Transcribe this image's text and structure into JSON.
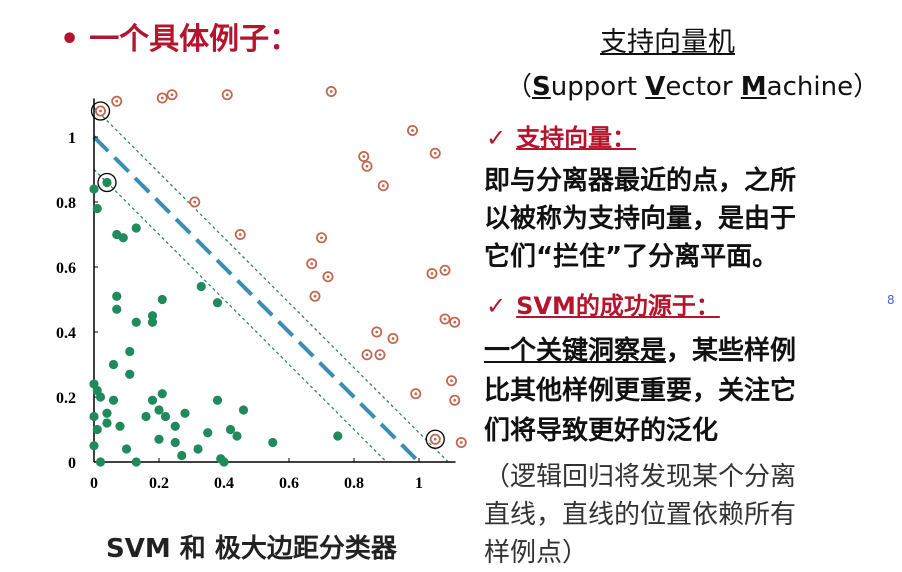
{
  "title": {
    "bullet": "•",
    "text": "一个具体例子："
  },
  "right_panel": {
    "heading": "支持向量机",
    "subheading": {
      "open": "（",
      "parts": [
        {
          "initial": "S",
          "rest": "upport "
        },
        {
          "initial": "V",
          "rest": "ector "
        },
        {
          "initial": "M",
          "rest": "achine"
        }
      ],
      "close": "）"
    },
    "check_mark": "✓",
    "section1": {
      "title": "支持向量：",
      "lines": [
        "即与分离器最近的点，之所",
        "以被称为支持向量，是由于",
        "它们“拦住”了分离平面。"
      ]
    },
    "section2": {
      "title": "SVM的成功源于：",
      "lines": [
        {
          "emph": "一个关键洞察是",
          "rest": "，某些样例"
        },
        {
          "emph": "",
          "rest": "比其他样例更重要，关注它"
        },
        {
          "emph": "",
          "rest": "们将导致更好的泛化"
        }
      ]
    },
    "note_lines": [
      "（逻辑回归将发现某个分离",
      "直线，直线的位置依赖所有",
      "样例点）"
    ],
    "margin_marker": "8"
  },
  "caption": "SVM 和 极大边距分类器",
  "colors": {
    "accent": "#b3152d",
    "positive": "#1f8a5b",
    "negative": "#c0694f",
    "separator": "#3b8db5",
    "margin": "#2f8a5a"
  },
  "chart_data": {
    "type": "scatter",
    "title": "",
    "xlabel": "",
    "ylabel": "",
    "xlim": [
      0,
      1.1
    ],
    "ylim": [
      0,
      1.1
    ],
    "x_ticks": [
      "0",
      "0.2",
      "0.4",
      "0.6",
      "0.8",
      "1"
    ],
    "y_ticks": [
      "0",
      "0.2",
      "0.4",
      "0.6",
      "0.8",
      "1"
    ],
    "separator": {
      "style": "dashed",
      "points": [
        [
          0,
          1
        ],
        [
          1,
          0
        ]
      ]
    },
    "margins": [
      {
        "style": "dotted",
        "points": [
          [
            0,
            1.09
          ],
          [
            1.09,
            0
          ]
        ]
      },
      {
        "style": "dotted",
        "points": [
          [
            0,
            0.9
          ],
          [
            0.9,
            0
          ]
        ]
      }
    ],
    "series": [
      {
        "name": "positive",
        "marker": "filled-circle",
        "points": [
          [
            0.0,
            0.84
          ],
          [
            0.01,
            0.78
          ],
          [
            0.04,
            0.86
          ],
          [
            0.07,
            0.7
          ],
          [
            0.09,
            0.69
          ],
          [
            0.13,
            0.72
          ],
          [
            0.07,
            0.51
          ],
          [
            0.07,
            0.47
          ],
          [
            0.13,
            0.43
          ],
          [
            0.18,
            0.43
          ],
          [
            0.18,
            0.45
          ],
          [
            0.21,
            0.5
          ],
          [
            0.11,
            0.34
          ],
          [
            0.06,
            0.3
          ],
          [
            0.11,
            0.27
          ],
          [
            0.0,
            0.24
          ],
          [
            0.01,
            0.22
          ],
          [
            0.02,
            0.2
          ],
          [
            0.06,
            0.19
          ],
          [
            0.21,
            0.21
          ],
          [
            0.18,
            0.19
          ],
          [
            0.2,
            0.16
          ],
          [
            0.16,
            0.14
          ],
          [
            0.22,
            0.14
          ],
          [
            0.0,
            0.14
          ],
          [
            0.04,
            0.15
          ],
          [
            0.04,
            0.12
          ],
          [
            0.08,
            0.11
          ],
          [
            0.01,
            0.1
          ],
          [
            0.28,
            0.15
          ],
          [
            0.25,
            0.11
          ],
          [
            0.35,
            0.09
          ],
          [
            0.38,
            0.19
          ],
          [
            0.46,
            0.16
          ],
          [
            0.42,
            0.1
          ],
          [
            0.44,
            0.08
          ],
          [
            0.33,
            0.54
          ],
          [
            0.38,
            0.49
          ],
          [
            0.0,
            0.05
          ],
          [
            0.1,
            0.04
          ],
          [
            0.2,
            0.07
          ],
          [
            0.25,
            0.06
          ],
          [
            0.27,
            0.02
          ],
          [
            0.32,
            0.04
          ],
          [
            0.39,
            0.01
          ],
          [
            0.4,
            0.0
          ],
          [
            0.55,
            0.06
          ],
          [
            0.75,
            0.08
          ],
          [
            0.13,
            0.0
          ],
          [
            0.02,
            0.0
          ]
        ]
      },
      {
        "name": "negative",
        "marker": "ring",
        "points": [
          [
            0.02,
            1.08
          ],
          [
            0.07,
            1.11
          ],
          [
            0.21,
            1.12
          ],
          [
            0.24,
            1.13
          ],
          [
            0.41,
            1.13
          ],
          [
            0.73,
            1.14
          ],
          [
            0.98,
            1.02
          ],
          [
            1.05,
            0.95
          ],
          [
            0.83,
            0.94
          ],
          [
            0.84,
            0.91
          ],
          [
            0.89,
            0.85
          ],
          [
            0.31,
            0.8
          ],
          [
            0.45,
            0.7
          ],
          [
            0.7,
            0.69
          ],
          [
            0.67,
            0.61
          ],
          [
            0.72,
            0.57
          ],
          [
            0.68,
            0.51
          ],
          [
            1.04,
            0.58
          ],
          [
            1.08,
            0.59
          ],
          [
            1.08,
            0.44
          ],
          [
            1.11,
            0.43
          ],
          [
            0.87,
            0.4
          ],
          [
            0.92,
            0.38
          ],
          [
            0.88,
            0.33
          ],
          [
            0.84,
            0.33
          ],
          [
            0.99,
            0.21
          ],
          [
            1.1,
            0.25
          ],
          [
            1.11,
            0.19
          ],
          [
            1.05,
            0.07
          ],
          [
            1.13,
            0.06
          ]
        ]
      }
    ],
    "support_vectors": [
      [
        0.02,
        1.08
      ],
      [
        0.04,
        0.86
      ],
      [
        1.05,
        0.07
      ]
    ]
  }
}
